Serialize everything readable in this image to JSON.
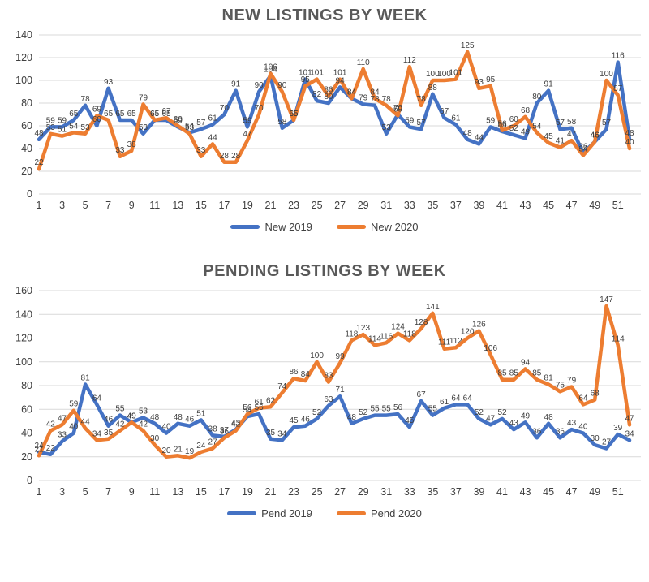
{
  "chart_data": [
    {
      "type": "line",
      "title": "NEW LISTINGS BY WEEK",
      "xlabel": "",
      "ylabel": "",
      "ylim": [
        0,
        140
      ],
      "y_step": 20,
      "grid": true,
      "legend_position": "bottom",
      "x_tick_labels": [
        1,
        3,
        5,
        7,
        9,
        11,
        13,
        15,
        17,
        19,
        21,
        23,
        25,
        27,
        29,
        31,
        33,
        35,
        37,
        39,
        41,
        43,
        45,
        47,
        49,
        51
      ],
      "categories": [
        1,
        2,
        3,
        4,
        5,
        6,
        7,
        8,
        9,
        10,
        11,
        12,
        13,
        14,
        15,
        16,
        17,
        18,
        19,
        20,
        21,
        22,
        23,
        24,
        25,
        26,
        27,
        28,
        29,
        30,
        31,
        32,
        33,
        34,
        35,
        36,
        37,
        38,
        39,
        40,
        41,
        42,
        43,
        44,
        45,
        46,
        47,
        48,
        49,
        50,
        51,
        52
      ],
      "series": [
        {
          "name": "New 2019",
          "color": "#4472C4",
          "values": [
            48,
            59,
            59,
            65,
            78,
            60,
            93,
            65,
            65,
            53,
            65,
            65,
            59,
            54,
            57,
            61,
            70,
            91,
            59,
            90,
            104,
            58,
            65,
            101,
            82,
            80,
            94,
            84,
            79,
            78,
            53,
            70,
            59,
            57,
            88,
            67,
            61,
            48,
            44,
            59,
            55,
            52,
            49,
            80,
            91,
            57,
            58,
            36,
            46,
            57,
            116,
            48
          ]
        },
        {
          "name": "New 2020",
          "color": "#ED7D31",
          "values": [
            22,
            53,
            51,
            54,
            53,
            69,
            65,
            33,
            38,
            79,
            65,
            67,
            60,
            53,
            33,
            44,
            28,
            28,
            47,
            70,
            106,
            90,
            65,
            95,
            101,
            86,
            101,
            84,
            110,
            84,
            78,
            69,
            112,
            78,
            100,
            100,
            101,
            125,
            93,
            95,
            56,
            60,
            68,
            54,
            45,
            41,
            47,
            34,
            46,
            100,
            87,
            40
          ]
        }
      ]
    },
    {
      "type": "line",
      "title": "PENDING LISTINGS BY WEEK",
      "xlabel": "",
      "ylabel": "",
      "ylim": [
        0,
        160
      ],
      "y_step": 20,
      "grid": true,
      "legend_position": "bottom",
      "x_tick_labels": [
        1,
        3,
        5,
        7,
        9,
        11,
        13,
        15,
        17,
        19,
        21,
        23,
        25,
        27,
        29,
        31,
        33,
        35,
        37,
        39,
        41,
        43,
        45,
        47,
        49,
        51
      ],
      "categories": [
        1,
        2,
        3,
        4,
        5,
        6,
        7,
        8,
        9,
        10,
        11,
        12,
        13,
        14,
        15,
        16,
        17,
        18,
        19,
        20,
        21,
        22,
        23,
        24,
        25,
        26,
        27,
        28,
        29,
        30,
        31,
        32,
        33,
        34,
        35,
        36,
        37,
        38,
        39,
        40,
        41,
        42,
        43,
        44,
        45,
        46,
        47,
        48,
        49,
        50,
        51,
        52
      ],
      "series": [
        {
          "name": "Pend 2019",
          "color": "#4472C4",
          "values": [
            24,
            22,
            33,
            40,
            81,
            64,
            46,
            55,
            49,
            53,
            48,
            40,
            48,
            46,
            51,
            38,
            37,
            43,
            54,
            56,
            35,
            34,
            45,
            46,
            52,
            63,
            71,
            48,
            52,
            55,
            55,
            56,
            45,
            67,
            55,
            61,
            64,
            64,
            52,
            47,
            52,
            43,
            49,
            36,
            48,
            36,
            43,
            40,
            30,
            27,
            39,
            34
          ]
        },
        {
          "name": "Pend 2020",
          "color": "#ED7D31",
          "values": [
            21,
            42,
            47,
            59,
            44,
            34,
            35,
            42,
            49,
            42,
            30,
            20,
            21,
            19,
            24,
            27,
            36,
            42,
            56,
            61,
            62,
            74,
            86,
            84,
            100,
            83,
            99,
            118,
            123,
            114,
            116,
            124,
            118,
            128,
            141,
            111,
            112,
            120,
            126,
            106,
            85,
            85,
            94,
            85,
            81,
            75,
            79,
            64,
            68,
            147,
            114,
            47
          ]
        }
      ]
    }
  ],
  "style": {
    "grid_color": "#D9D9D9",
    "tick_label_color": "#404040",
    "data_label_color": "#3F3F3F",
    "title_color": "#595959"
  }
}
